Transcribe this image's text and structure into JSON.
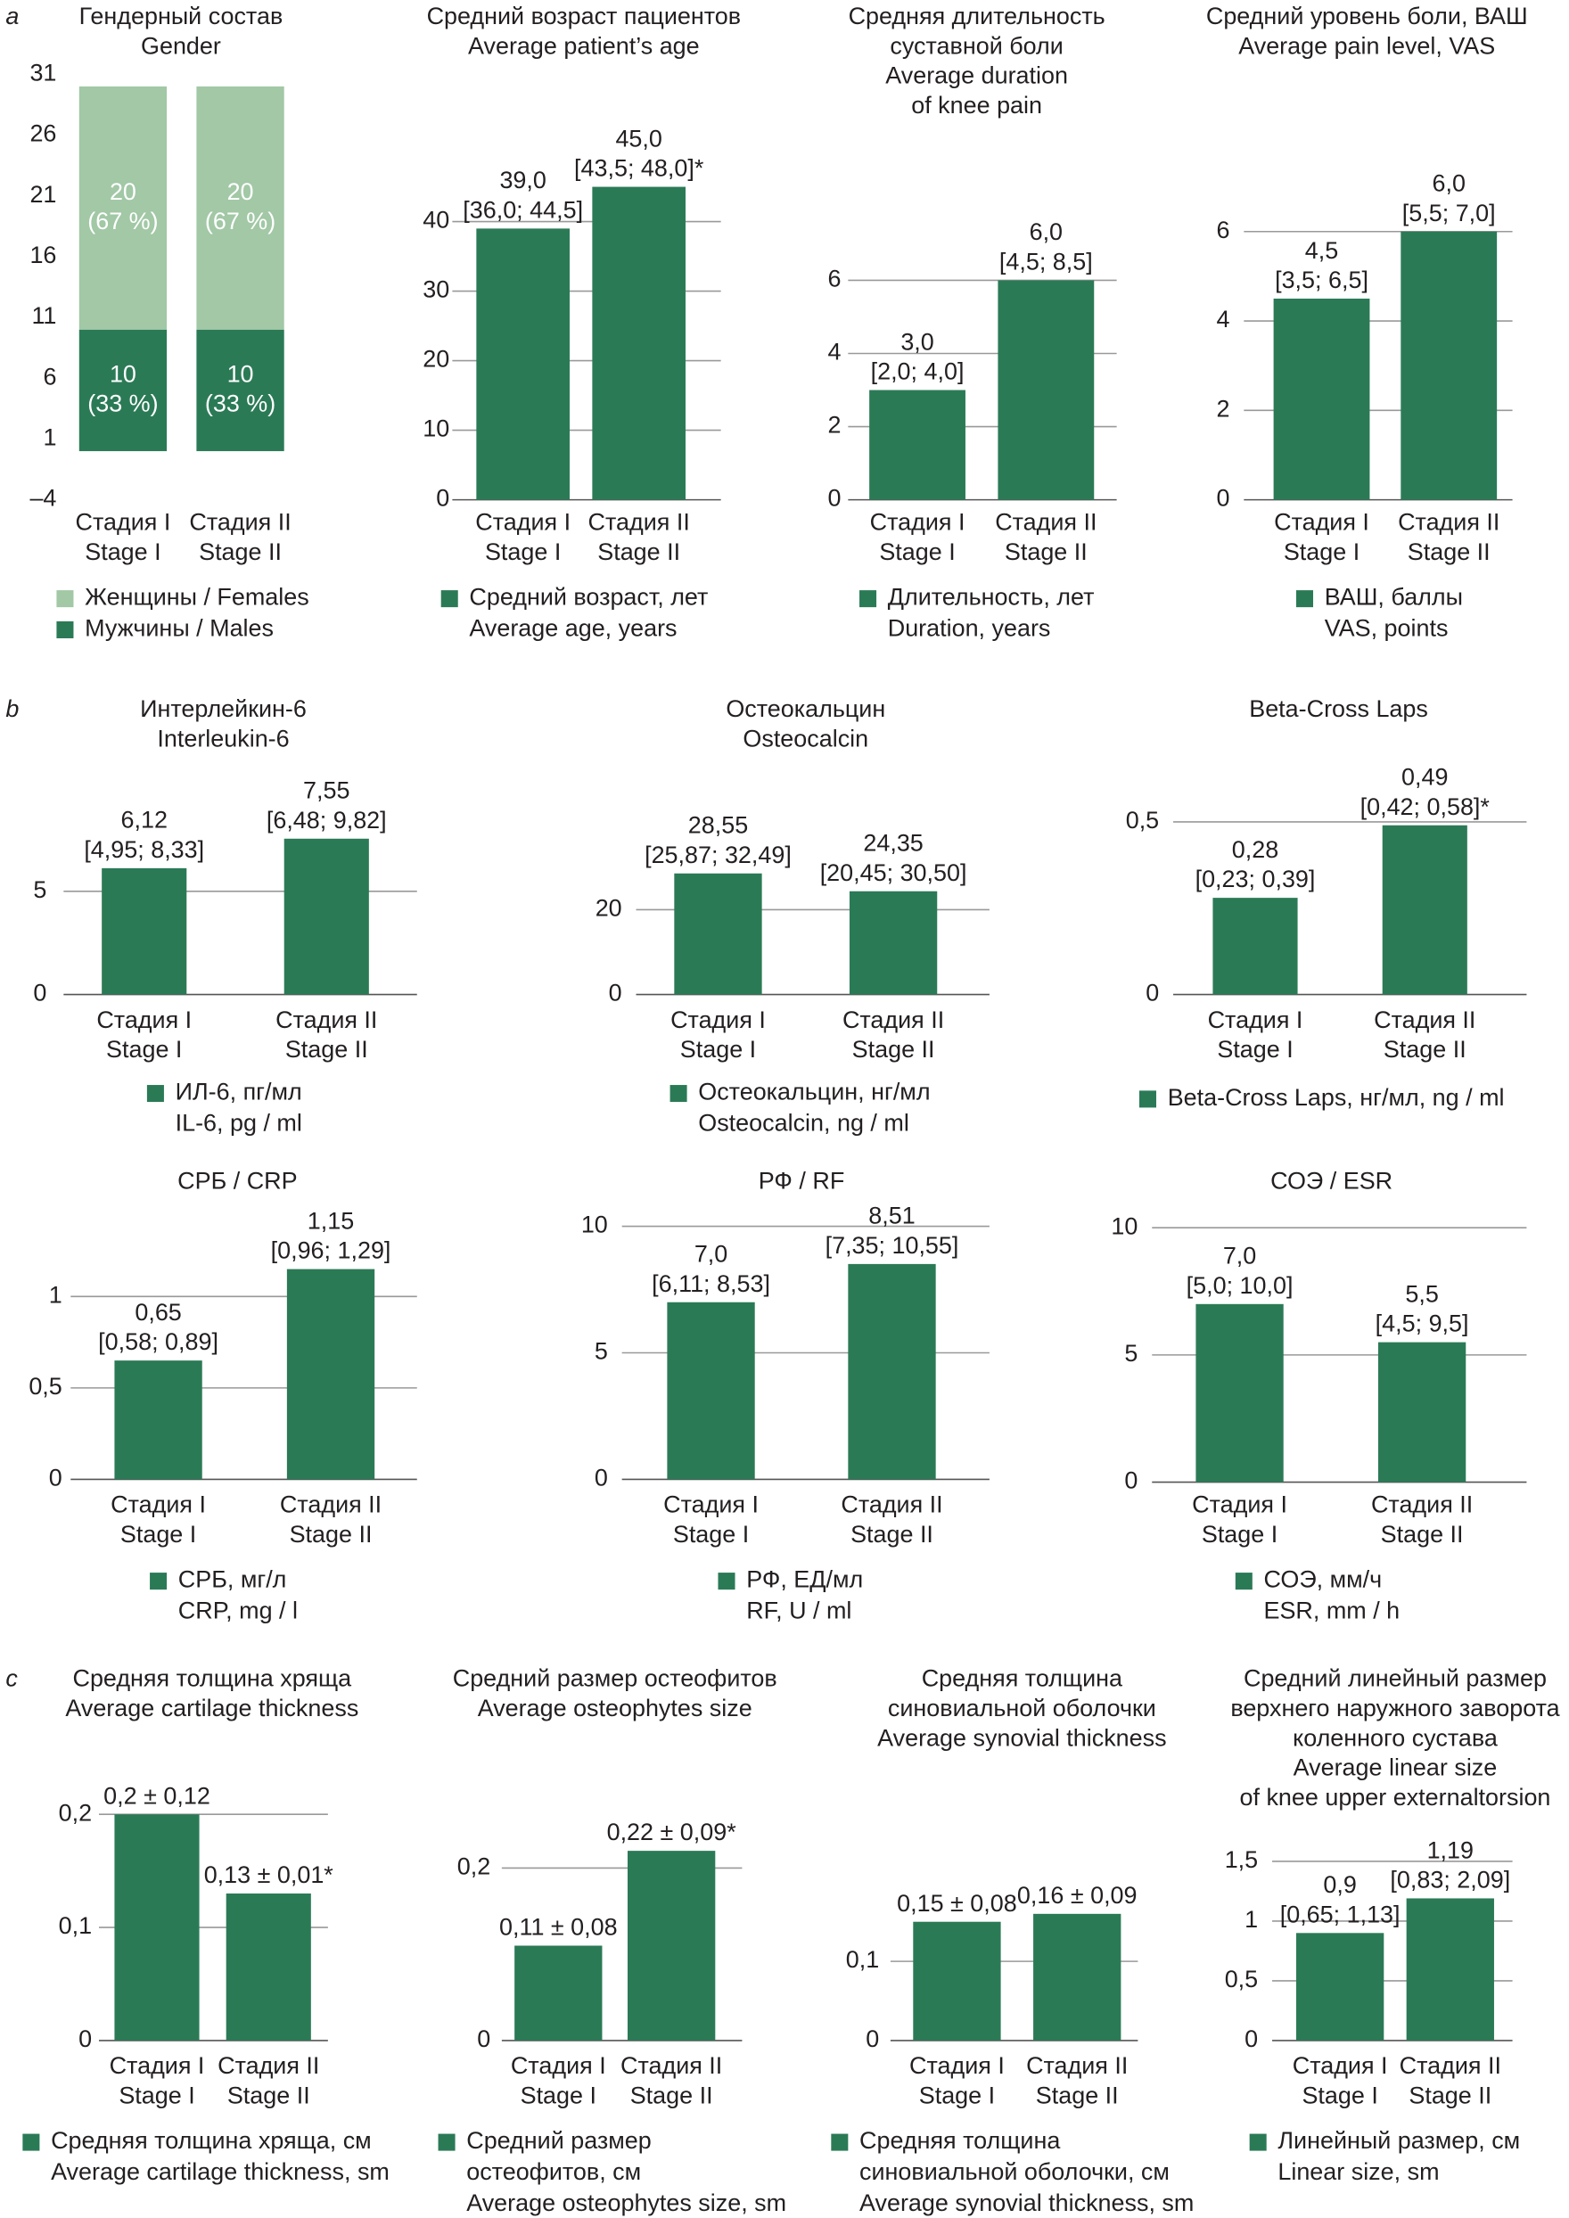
{
  "panel_labels": [
    "a",
    "b",
    "c"
  ],
  "chart_data": [
    {
      "type": "bar",
      "stacked": true,
      "grid": false,
      "title": [
        "Гендерный состав",
        "Gender"
      ],
      "categories": [
        [
          "Стадия I",
          "Stage I"
        ],
        [
          "Стадия II",
          "Stage II"
        ]
      ],
      "ylim": [
        -4,
        31
      ],
      "yticks": [
        {
          "value": -4,
          "label": "–4"
        },
        1,
        6,
        11,
        16,
        21,
        26,
        31
      ],
      "series": [
        {
          "name": "Мужчины / Males",
          "color": "#2b7a56",
          "values": [
            10,
            10
          ],
          "value_labels": [
            [
              "10",
              "(33 %)"
            ],
            [
              "10",
              "(33 %)"
            ]
          ]
        },
        {
          "name": "Женщины / Females",
          "color": "#a2c8a6",
          "values": [
            20,
            20
          ],
          "value_labels": [
            [
              "20",
              "(67 %)"
            ],
            [
              "20",
              "(67 %)"
            ]
          ]
        }
      ]
    },
    {
      "type": "bar",
      "grid": true,
      "title": [
        "Средний возраст пациентов",
        "Average patient’s age"
      ],
      "categories": [
        [
          "Стадия I",
          "Stage I"
        ],
        [
          "Стадия II",
          "Stage II"
        ]
      ],
      "ylim": [
        0,
        50
      ],
      "yticks": [
        0,
        10,
        20,
        30,
        40
      ],
      "series": [
        {
          "name": [
            "Средний возраст, лет",
            "Average age, years"
          ],
          "color": "#2b7a56",
          "values": [
            39.0,
            45.0
          ],
          "value_labels": [
            [
              "39,0",
              "[36,0; 44,5]"
            ],
            [
              "45,0",
              "[43,5; 48,0]*"
            ]
          ]
        }
      ]
    },
    {
      "type": "bar",
      "grid": true,
      "title": [
        "Средняя длительность",
        "суставной боли",
        "Average duration",
        "of knee pain"
      ],
      "categories": [
        [
          "Стадия I",
          "Stage I"
        ],
        [
          "Стадия II",
          "Stage II"
        ]
      ],
      "ylim": [
        0,
        8
      ],
      "yticks": [
        0,
        2,
        4,
        6
      ],
      "series": [
        {
          "name": [
            "Длительность, лет",
            "Duration, years"
          ],
          "color": "#2b7a56",
          "values": [
            3.0,
            6.0
          ],
          "value_labels": [
            [
              "3,0",
              "[2,0; 4,0]"
            ],
            [
              "6,0",
              "[4,5; 8,5]"
            ]
          ]
        }
      ]
    },
    {
      "type": "bar",
      "grid": true,
      "title": [
        "Средний уровень боли, ВАШ",
        "Average pain level, VAS"
      ],
      "categories": [
        [
          "Стадия I",
          "Stage I"
        ],
        [
          "Стадия II",
          "Stage II"
        ]
      ],
      "ylim": [
        0,
        8
      ],
      "yticks": [
        0,
        2,
        4,
        6
      ],
      "series": [
        {
          "name": [
            "ВАШ, баллы",
            "VAS, points"
          ],
          "color": "#2b7a56",
          "values": [
            4.5,
            6.0
          ],
          "value_labels": [
            [
              "4,5",
              "[3,5; 6,5]"
            ],
            [
              "6,0",
              "[5,5; 7,0]"
            ]
          ]
        }
      ]
    },
    {
      "type": "bar",
      "grid": true,
      "title": [
        "Интерлейкин-6",
        "Interleukin-6"
      ],
      "categories": [
        [
          "Стадия I",
          "Stage I"
        ],
        [
          "Стадия II",
          "Stage II"
        ]
      ],
      "ylim": [
        0,
        10
      ],
      "yticks": [
        0,
        5
      ],
      "series": [
        {
          "name": [
            "ИЛ-6, пг/мл",
            "IL-6, pg / ml"
          ],
          "color": "#2b7a56",
          "values": [
            6.12,
            7.55
          ],
          "value_labels": [
            [
              "6,12",
              "[4,95; 8,33]"
            ],
            [
              "7,55",
              "[6,48; 9,82]"
            ]
          ]
        }
      ]
    },
    {
      "type": "bar",
      "grid": true,
      "title": [
        "Остеокальцин",
        "Osteocalcin"
      ],
      "categories": [
        [
          "Стадия I",
          "Stage I"
        ],
        [
          "Стадия II",
          "Stage II"
        ]
      ],
      "ylim": [
        0,
        40
      ],
      "yticks": [
        0,
        20
      ],
      "series": [
        {
          "name": [
            "Остеокальцин, нг/мл",
            "Osteocalcin, ng / ml"
          ],
          "color": "#2b7a56",
          "values": [
            28.55,
            24.35
          ],
          "value_labels": [
            [
              "28,55",
              "[25,87; 32,49]"
            ],
            [
              "24,35",
              "[20,45; 30,50]"
            ]
          ]
        }
      ]
    },
    {
      "type": "bar",
      "grid": true,
      "title": [
        "Beta-Cross Laps"
      ],
      "categories": [
        [
          "Стадия I",
          "Stage I"
        ],
        [
          "Стадия II",
          "Stage II"
        ]
      ],
      "ylim": [
        0,
        0.7
      ],
      "yticks": [
        0,
        {
          "value": 0.5,
          "label": "0,5"
        }
      ],
      "series": [
        {
          "name": [
            "Beta-Cross Laps, нг/мл, ng / ml"
          ],
          "color": "#2b7a56",
          "values": [
            0.28,
            0.49
          ],
          "value_labels": [
            [
              "0,28",
              "[0,23; 0,39]"
            ],
            [
              "0,49",
              "[0,42; 0,58]*"
            ]
          ]
        }
      ]
    },
    {
      "type": "bar",
      "grid": true,
      "title": [
        "СРБ / CRP"
      ],
      "categories": [
        [
          "Стадия I",
          "Stage I"
        ],
        [
          "Стадия II",
          "Stage II"
        ]
      ],
      "ylim": [
        0,
        1.5
      ],
      "yticks": [
        0,
        {
          "value": 0.5,
          "label": "0,5"
        },
        1
      ],
      "series": [
        {
          "name": [
            "СРБ, мг/л",
            "CRP, mg / l"
          ],
          "color": "#2b7a56",
          "values": [
            0.65,
            1.15
          ],
          "value_labels": [
            [
              "0,65",
              "[0,58; 0,89]"
            ],
            [
              "1,15",
              "[0,96; 1,29]"
            ]
          ]
        }
      ]
    },
    {
      "type": "bar",
      "grid": true,
      "title": [
        "РФ / RF"
      ],
      "categories": [
        [
          "Стадия I",
          "Stage I"
        ],
        [
          "Стадия II",
          "Stage II"
        ]
      ],
      "ylim": [
        0,
        10
      ],
      "yticks": [
        0,
        5,
        10
      ],
      "series": [
        {
          "name": [
            "РФ, ЕД/мл",
            "RF, U / ml"
          ],
          "color": "#2b7a56",
          "values": [
            7.0,
            8.51
          ],
          "value_labels": [
            [
              "7,0",
              "[6,11; 8,53]"
            ],
            [
              "8,51",
              "[7,35; 10,55]"
            ]
          ]
        }
      ]
    },
    {
      "type": "bar",
      "grid": true,
      "title": [
        "СОЭ / ESR"
      ],
      "categories": [
        [
          "Стадия I",
          "Stage I"
        ],
        [
          "Стадия II",
          "Stage II"
        ]
      ],
      "ylim": [
        0,
        10
      ],
      "yticks": [
        0,
        5,
        10
      ],
      "series": [
        {
          "name": [
            "СОЭ, мм/ч",
            "ESR, mm / h"
          ],
          "color": "#2b7a56",
          "values": [
            7.0,
            5.5
          ],
          "value_labels": [
            [
              "7,0",
              "[5,0; 10,0]"
            ],
            [
              "5,5",
              "[4,5; 9,5]"
            ]
          ]
        }
      ]
    },
    {
      "type": "bar",
      "grid": true,
      "title": [
        "Средняя толщина хряща",
        "Average cartilage thickness"
      ],
      "categories": [
        [
          "Стадия I",
          "Stage I"
        ],
        [
          "Стадия II",
          "Stage II"
        ]
      ],
      "ylim": [
        0,
        0.25
      ],
      "yticks": [
        0,
        {
          "value": 0.1,
          "label": "0,1"
        },
        {
          "value": 0.2,
          "label": "0,2"
        }
      ],
      "series": [
        {
          "name": [
            "Средняя толщина хряща, см",
            "Average cartilage thickness, sm"
          ],
          "color": "#2b7a56",
          "values": [
            0.2,
            0.13
          ],
          "value_labels": [
            [
              "0,2 ± 0,12"
            ],
            [
              "0,13 ± 0,01*"
            ]
          ]
        }
      ]
    },
    {
      "type": "bar",
      "grid": true,
      "title": [
        "Средний размер остеофитов",
        "Average osteophytes size"
      ],
      "categories": [
        [
          "Стадия I",
          "Stage I"
        ],
        [
          "Стадия II",
          "Stage II"
        ]
      ],
      "ylim": [
        0,
        0.3
      ],
      "yticks": [
        0,
        {
          "value": 0.2,
          "label": "0,2"
        }
      ],
      "series": [
        {
          "name": [
            "Средний размер",
            "остеофитов, см",
            "Average osteophytes size, sm"
          ],
          "color": "#2b7a56",
          "values": [
            0.11,
            0.22
          ],
          "value_labels": [
            [
              "0,11 ± 0,08"
            ],
            [
              "0,22 ± 0,09*"
            ]
          ]
        }
      ]
    },
    {
      "type": "bar",
      "grid": true,
      "title": [
        "Средняя толщина",
        "синовиальной оболочки",
        "Average synovial thickness"
      ],
      "categories": [
        [
          "Стадия I",
          "Stage I"
        ],
        [
          "Стадия II",
          "Stage II"
        ]
      ],
      "ylim": [
        0,
        0.2
      ],
      "yticks": [
        0,
        {
          "value": 0.1,
          "label": "0,1"
        }
      ],
      "series": [
        {
          "name": [
            "Средняя толщина",
            "синовиальной оболочки, см",
            "Average synovial thickness, sm"
          ],
          "color": "#2b7a56",
          "values": [
            0.15,
            0.16
          ],
          "value_labels": [
            [
              "0,15 ± 0,08"
            ],
            [
              "0,16 ± 0,09"
            ]
          ]
        }
      ]
    },
    {
      "type": "bar",
      "grid": true,
      "title": [
        "Средний линейный размер",
        "верхнего наружного заворота",
        "коленного сустава",
        "Average linear size",
        "of knee upper externaltorsion"
      ],
      "categories": [
        [
          "Стадия I",
          "Stage I"
        ],
        [
          "Стадия II",
          "Stage II"
        ]
      ],
      "ylim": [
        0,
        2
      ],
      "yticks": [
        0,
        {
          "value": 0.5,
          "label": "0,5"
        },
        1,
        {
          "value": 1.5,
          "label": "1,5"
        }
      ],
      "series": [
        {
          "name": [
            "Линейный размер, см",
            "Linear size, sm"
          ],
          "color": "#2b7a56",
          "values": [
            0.9,
            1.19
          ],
          "value_labels": [
            [
              "0,9",
              "[0,65; 1,13]"
            ],
            [
              "1,19",
              "[0,83; 2,09]"
            ]
          ]
        }
      ]
    }
  ]
}
